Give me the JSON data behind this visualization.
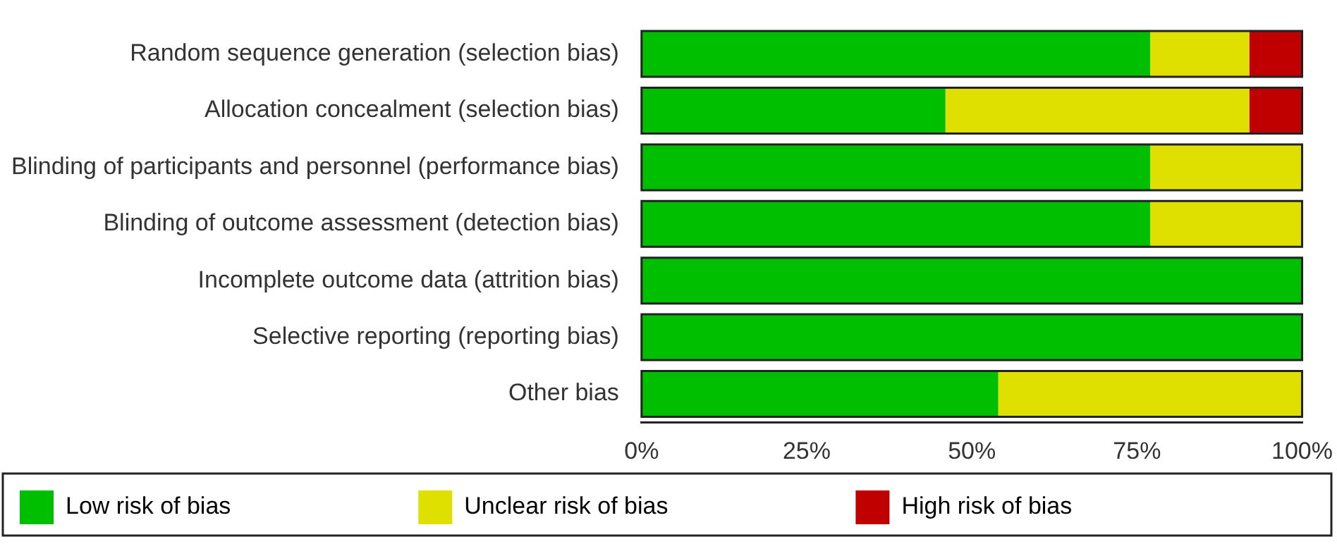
{
  "chart_data": {
    "type": "bar",
    "orientation": "horizontal",
    "stacked": true,
    "categories": [
      "Random sequence generation (selection bias)",
      "Allocation concealment (selection bias)",
      "Blinding of participants and personnel (performance bias)",
      "Blinding of outcome assessment (detection bias)",
      "Incomplete outcome data (attrition bias)",
      "Selective reporting (reporting bias)",
      "Other bias"
    ],
    "series": [
      {
        "name": "Low risk of bias",
        "color": "#00bf00",
        "values": [
          77,
          46,
          77,
          77,
          100,
          100,
          54
        ]
      },
      {
        "name": "Unclear risk of bias",
        "color": "#e0e000",
        "values": [
          15,
          46,
          23,
          23,
          0,
          0,
          46
        ]
      },
      {
        "name": "High risk of bias",
        "color": "#c00000",
        "values": [
          8,
          8,
          0,
          0,
          0,
          0,
          0
        ]
      }
    ],
    "xlim": [
      0,
      100
    ],
    "xticks": [
      {
        "value": 0,
        "label": "0%"
      },
      {
        "value": 25,
        "label": "25%"
      },
      {
        "value": 50,
        "label": "50%"
      },
      {
        "value": 75,
        "label": "75%"
      },
      {
        "value": 100,
        "label": "100%"
      }
    ],
    "grid": false,
    "legend": "bottom"
  }
}
